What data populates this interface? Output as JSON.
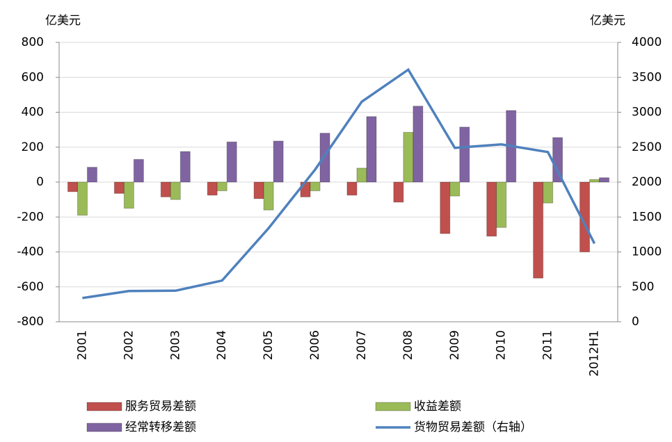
{
  "chart_data": {
    "type": "bar",
    "y_label": "亿美元",
    "y2_label": "亿美元",
    "categories": [
      "2001",
      "2002",
      "2003",
      "2004",
      "2005",
      "2006",
      "2007",
      "2008",
      "2009",
      "2010",
      "2011",
      "2012H1"
    ],
    "series": [
      {
        "name": "服务贸易差额",
        "color": "#c0504d",
        "values": [
          -55,
          -65,
          -85,
          -75,
          -95,
          -85,
          -75,
          -115,
          -295,
          -310,
          -550,
          -400
        ]
      },
      {
        "name": "收益差额",
        "color": "#9bbb59",
        "values": [
          -190,
          -150,
          -100,
          -50,
          -160,
          -50,
          80,
          285,
          -80,
          -260,
          -120,
          15
        ]
      },
      {
        "name": "经常转移差额",
        "color": "#8064a2",
        "values": [
          85,
          130,
          175,
          230,
          235,
          280,
          375,
          435,
          315,
          410,
          255,
          25
        ]
      },
      {
        "name": "货物贸易差额（右轴）",
        "color": "#4f81bd",
        "type": "line",
        "axis": "y2",
        "values": [
          340,
          440,
          445,
          590,
          1340,
          2180,
          3150,
          3610,
          2490,
          2540,
          2430,
          1120
        ]
      }
    ],
    "ylim": [
      -800,
      800
    ],
    "yticks": [
      -800,
      -600,
      -400,
      -200,
      0,
      200,
      400,
      600,
      800
    ],
    "y2lim": [
      0,
      4000
    ],
    "y2ticks": [
      0,
      500,
      1000,
      1500,
      2000,
      2500,
      3000,
      3500,
      4000
    ],
    "grid": true
  }
}
